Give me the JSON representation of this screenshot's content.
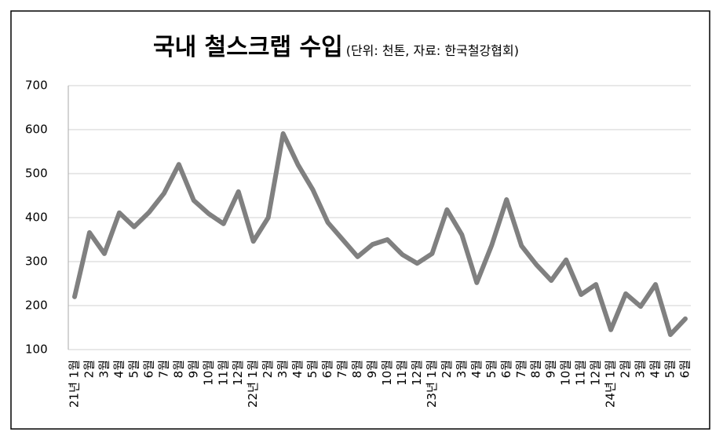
{
  "chart_data": {
    "type": "line",
    "title": "국내 철스크랩 수입",
    "subtitle": "(단위: 천톤, 자료: 한국철강협회)",
    "categories": [
      "21년 1월",
      "2월",
      "3월",
      "4월",
      "5월",
      "6월",
      "7월",
      "8월",
      "9월",
      "10월",
      "11월",
      "12월",
      "22년 1월",
      "2월",
      "3월",
      "4월",
      "5월",
      "6월",
      "7월",
      "8월",
      "9월",
      "10월",
      "11월",
      "12월",
      "23년 1월",
      "2월",
      "3월",
      "4월",
      "5월",
      "6월",
      "7월",
      "8월",
      "9월",
      "10월",
      "11월",
      "12월",
      "24년 1월",
      "2월",
      "3월",
      "4월",
      "5월",
      "6월"
    ],
    "series": [
      {
        "name": "수입",
        "color": "#808080",
        "values": [
          220,
          366,
          318,
          411,
          379,
          412,
          455,
          521,
          439,
          409,
          386,
          459,
          346,
          400,
          591,
          520,
          463,
          389,
          350,
          311,
          339,
          350,
          316,
          296,
          318,
          418,
          361,
          252,
          337,
          441,
          336,
          293,
          257,
          304,
          225,
          248,
          145,
          227,
          198,
          248,
          134,
          170
        ]
      }
    ],
    "ylim": [
      100,
      700
    ],
    "yticks": [
      100,
      200,
      300,
      400,
      500,
      600,
      700
    ],
    "grid": true
  }
}
